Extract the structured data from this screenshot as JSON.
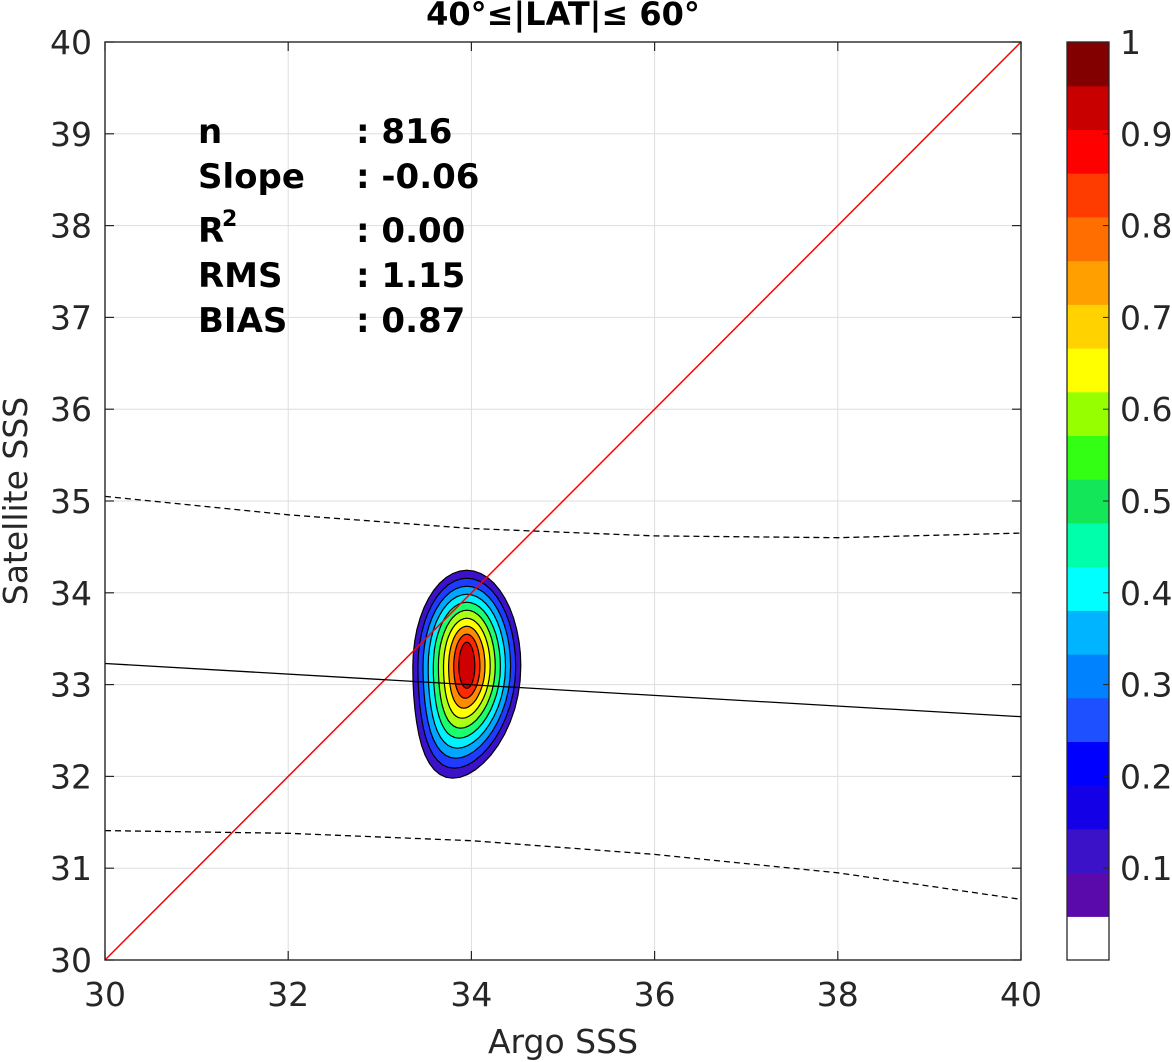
{
  "chart_data": {
    "type": "contour",
    "title": "40°≤|LAT|≤ 60°",
    "xlabel": "Argo SSS",
    "ylabel": "Satellite SSS",
    "xlim": [
      30,
      40
    ],
    "ylim": [
      30,
      40
    ],
    "xticks": [
      "30",
      "32",
      "34",
      "36",
      "38",
      "40"
    ],
    "yticks": [
      "30",
      "31",
      "32",
      "33",
      "34",
      "35",
      "36",
      "37",
      "38",
      "39",
      "40"
    ],
    "grid": true,
    "stats": [
      {
        "label": "n",
        "value": ": 816"
      },
      {
        "label": "Slope",
        "value": ": -0.06"
      },
      {
        "label": "R",
        "sup": "2",
        "value": ": 0.00"
      },
      {
        "label": "RMS",
        "value": ": 1.15"
      },
      {
        "label": "BIAS",
        "value": ": 0.87"
      }
    ],
    "series": [
      {
        "kind": "identity-line",
        "color": "#ff0000",
        "x": [
          30,
          40
        ],
        "y": [
          30,
          40
        ]
      },
      {
        "kind": "regression-line",
        "color": "#000000",
        "x": [
          30,
          40
        ],
        "y": [
          33.23,
          32.65
        ]
      },
      {
        "kind": "upper-bound",
        "style": "dashed",
        "color": "#000000",
        "x": [
          30,
          32,
          34,
          36,
          38,
          40
        ],
        "y": [
          35.05,
          34.85,
          34.7,
          34.62,
          34.6,
          34.65
        ]
      },
      {
        "kind": "lower-bound",
        "style": "dashed",
        "color": "#000000",
        "x": [
          30,
          32,
          34,
          36,
          38,
          40
        ],
        "y": [
          31.41,
          31.38,
          31.3,
          31.15,
          30.95,
          30.66
        ]
      }
    ],
    "density": {
      "center": [
        33.95,
        33.2
      ],
      "levels": [
        0.05,
        0.1,
        0.15,
        0.2,
        0.25,
        0.3,
        0.35,
        0.4,
        0.45,
        0.5,
        0.55,
        0.6,
        0.65,
        0.7,
        0.75,
        0.8,
        0.85,
        0.9,
        0.95
      ],
      "filled": [
        {
          "level": 0.05,
          "color": "#3c12c8"
        },
        {
          "level": 0.15,
          "color": "#1e3cff"
        },
        {
          "level": 0.25,
          "color": "#00a6ff"
        },
        {
          "level": 0.35,
          "color": "#00f2ff"
        },
        {
          "level": 0.45,
          "color": "#19ff6e"
        },
        {
          "level": 0.55,
          "color": "#aaff14"
        },
        {
          "level": 0.65,
          "color": "#ffff00"
        },
        {
          "level": 0.75,
          "color": "#ff8c00"
        },
        {
          "level": 0.85,
          "color": "#ff2800"
        },
        {
          "level": 0.9,
          "color": "#d00000"
        }
      ]
    },
    "colorbar": {
      "ticks": [
        "0.1",
        "0.2",
        "0.3",
        "0.4",
        "0.5",
        "0.6",
        "0.7",
        "0.8",
        "0.9",
        "1"
      ],
      "colors": [
        "#ffffff",
        "#5a0aaa",
        "#3c12c8",
        "#1400e6",
        "#0000ff",
        "#1e50ff",
        "#0082ff",
        "#00b4ff",
        "#00ffff",
        "#00ffaa",
        "#14e65a",
        "#32ff14",
        "#96ff00",
        "#ffff00",
        "#ffd200",
        "#ffa000",
        "#ff6e00",
        "#ff3c00",
        "#ff0000",
        "#c80000",
        "#820000"
      ]
    }
  }
}
